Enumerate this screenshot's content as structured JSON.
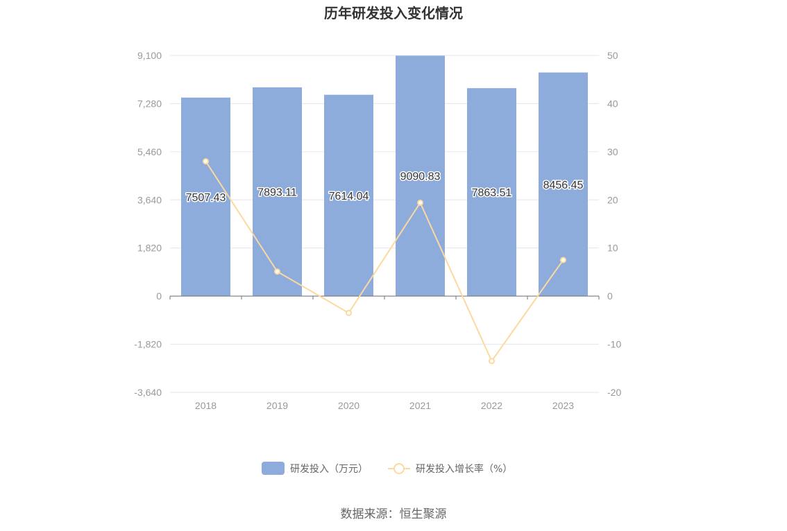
{
  "chart_data": {
    "type": "bar",
    "title": "历年研发投入变化情况",
    "categories": [
      "2018",
      "2019",
      "2020",
      "2021",
      "2022",
      "2023"
    ],
    "series": [
      {
        "name": "研发投入（万元）",
        "type": "bar",
        "axis": "left",
        "color": "#8eacdb",
        "values": [
          7507.43,
          7893.11,
          7614.04,
          9090.83,
          7863.51,
          8456.45
        ],
        "labels": [
          "7507.43",
          "7893.11",
          "7614.04",
          "9090.83",
          "7863.51",
          "8456.45"
        ]
      },
      {
        "name": "研发投入增长率（%）",
        "type": "line",
        "axis": "right",
        "color": "#fbd99f",
        "values": [
          28.0,
          5.1,
          -3.5,
          19.4,
          -13.5,
          7.5
        ]
      }
    ],
    "y_left": {
      "min": -3640,
      "max": 9100,
      "ticks": [
        "9,100",
        "7,280",
        "5,460",
        "3,640",
        "1,820",
        "0",
        "-1,820",
        "-3,640"
      ]
    },
    "y_right": {
      "min": -20,
      "max": 50,
      "ticks": [
        "50",
        "40",
        "30",
        "20",
        "10",
        "0",
        "-10",
        "-20"
      ]
    },
    "legend_position": "bottom-center",
    "grid": true
  },
  "source": "数据来源：恒生聚源",
  "colors": {
    "bar": "#8eacdb",
    "line": "#fbd99f",
    "grid": "#e3e6f0",
    "axis": "#6e7079"
  }
}
